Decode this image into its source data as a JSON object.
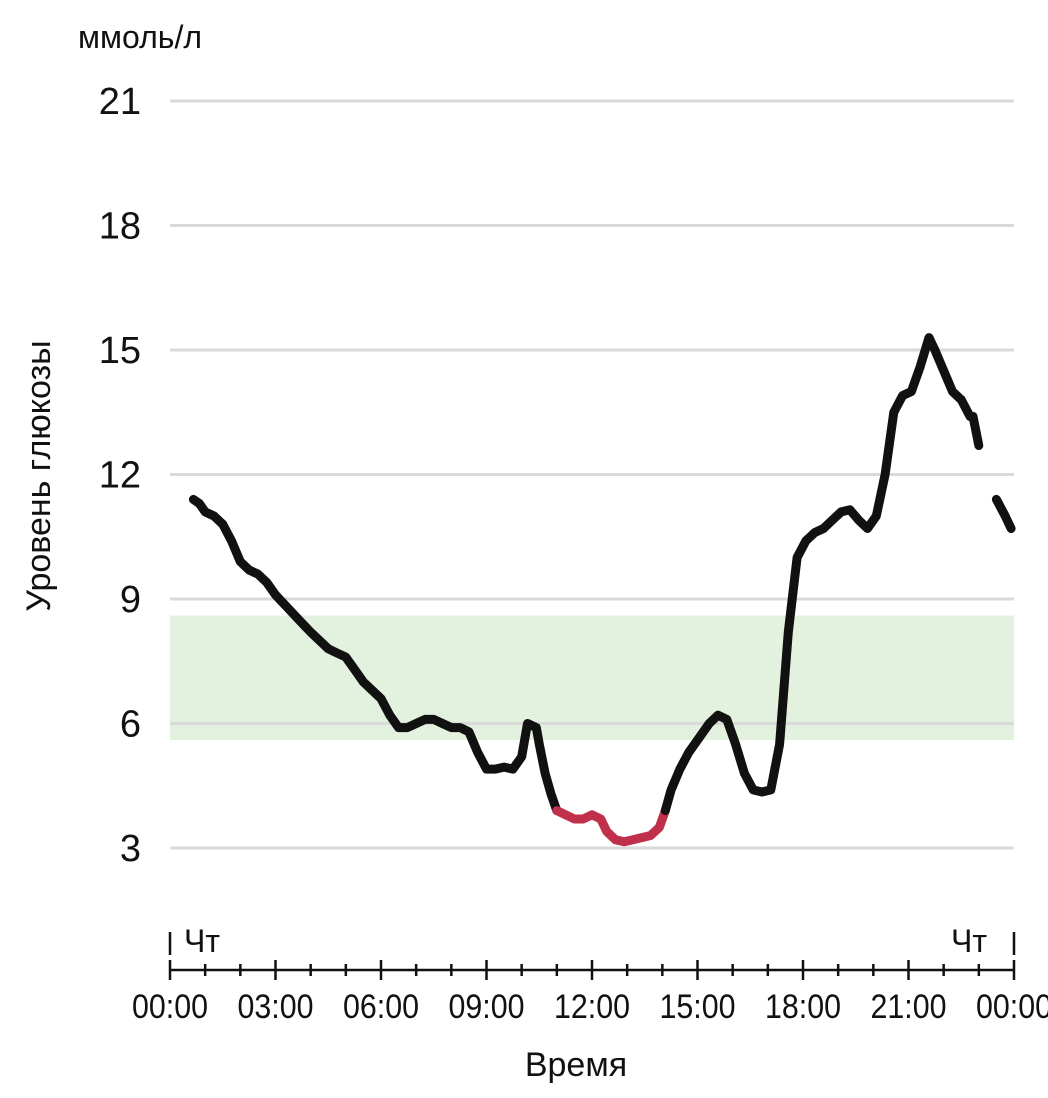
{
  "chart_data": {
    "type": "line",
    "unit_label": "ммоль/л",
    "xlabel": "Время",
    "ylabel": "Уровень глюкозы",
    "ylim": [
      3,
      21
    ],
    "xlim_hours": [
      0,
      24
    ],
    "y_ticks": [
      "3",
      "6",
      "9",
      "12",
      "15",
      "18",
      "21"
    ],
    "y_tick_values": [
      3,
      6,
      9,
      12,
      15,
      18,
      21
    ],
    "x_ticks": [
      "00:00",
      "03:00",
      "06:00",
      "09:00",
      "12:00",
      "15:00",
      "18:00",
      "21:00",
      "00:00"
    ],
    "day_label_left": "Чт",
    "day_label_right": "Чт",
    "grid": true,
    "target_range": [
      5.6,
      8.6
    ],
    "colors": {
      "line": "#111111",
      "low": "#c0304a",
      "target_band": "#e3f1df",
      "grid": "#d9d9d9",
      "axis": "#111111"
    },
    "series": [
      {
        "x": [
          "00:40",
          "00:50",
          "01:00",
          "01:15",
          "01:30",
          "01:45",
          "02:00",
          "02:15",
          "02:30",
          "02:45",
          "03:00",
          "03:20",
          "03:40",
          "04:00",
          "04:15",
          "04:30",
          "04:45",
          "05:00",
          "05:15",
          "05:30",
          "05:45",
          "06:00",
          "06:15",
          "06:30",
          "06:45",
          "07:00",
          "07:15",
          "07:30",
          "07:45",
          "08:00",
          "08:15",
          "08:30",
          "08:45",
          "09:00",
          "09:15",
          "09:30",
          "09:45",
          "10:00",
          "10:10",
          "10:25",
          "10:30",
          "10:40",
          "10:50",
          "11:00"
        ],
        "y": [
          11.4,
          11.3,
          11.1,
          11.0,
          10.8,
          10.4,
          9.9,
          9.7,
          9.6,
          9.4,
          9.1,
          8.8,
          8.5,
          8.2,
          8.0,
          7.8,
          7.7,
          7.6,
          7.3,
          7.0,
          6.8,
          6.6,
          6.2,
          5.9,
          5.9,
          6.0,
          6.1,
          6.1,
          6.0,
          5.9,
          5.9,
          5.8,
          5.3,
          4.9,
          4.9,
          4.95,
          4.9,
          5.2,
          6.0,
          5.9,
          5.5,
          4.8,
          4.3,
          3.9
        ]
      },
      {
        "x": [
          "11:00",
          "11:15",
          "11:30",
          "11:45",
          "12:00",
          "12:15",
          "12:25",
          "12:40",
          "12:55",
          "13:10",
          "13:25",
          "13:40",
          "13:55",
          "14:05"
        ],
        "y": [
          3.9,
          3.8,
          3.7,
          3.7,
          3.8,
          3.7,
          3.4,
          3.2,
          3.15,
          3.2,
          3.25,
          3.3,
          3.5,
          3.9
        ]
      },
      {
        "x": [
          "14:05",
          "14:15",
          "14:30",
          "14:45",
          "15:00",
          "15:20",
          "15:35",
          "15:50",
          "16:05",
          "16:20",
          "16:35",
          "16:50",
          "17:05",
          "17:20",
          "17:35",
          "17:50",
          "18:05",
          "18:20",
          "18:35",
          "18:50",
          "19:05",
          "19:20",
          "19:35",
          "19:50",
          "20:05",
          "20:20",
          "20:35",
          "20:50",
          "21:05",
          "21:20",
          "21:35",
          "21:45",
          "22:00",
          "22:15",
          "22:30",
          "22:45"
        ],
        "y": [
          3.9,
          4.4,
          4.9,
          5.3,
          5.6,
          6.0,
          6.2,
          6.1,
          5.5,
          4.8,
          4.4,
          4.35,
          4.4,
          5.5,
          8.2,
          10.0,
          10.4,
          10.6,
          10.7,
          10.9,
          11.1,
          11.15,
          10.9,
          10.7,
          11.0,
          12.0,
          13.5,
          13.9,
          14.0,
          14.6,
          15.3,
          15.0,
          14.5,
          14.0,
          13.8,
          13.4
        ]
      },
      {
        "x": [
          "22:50",
          "23:00"
        ],
        "y": [
          13.4,
          12.7
        ]
      },
      {
        "x": [
          "23:30",
          "23:45",
          "23:55"
        ],
        "y": [
          11.4,
          11.0,
          10.7
        ]
      }
    ],
    "low_series_index": 1
  }
}
